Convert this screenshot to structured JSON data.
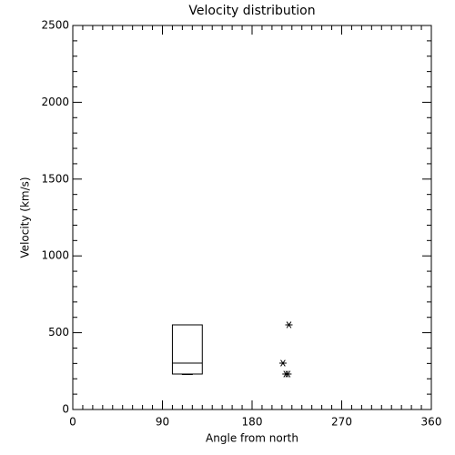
{
  "chart_data": {
    "type": "box-scatter",
    "title": "Velocity distribution",
    "x_label": "Angle from north",
    "y_label": "Velocity (km/s)",
    "xlim": [
      0,
      360
    ],
    "ylim": [
      0,
      2500
    ],
    "xticks": [
      0,
      90,
      180,
      270,
      360
    ],
    "yticks": [
      0,
      500,
      1000,
      1500,
      2000,
      2500
    ],
    "xminorticks": [
      10,
      20,
      30,
      40,
      50,
      60,
      70,
      80,
      100,
      110,
      120,
      130,
      140,
      150,
      160,
      170,
      190,
      200,
      210,
      220,
      230,
      240,
      250,
      260,
      280,
      290,
      300,
      310,
      320,
      330,
      340,
      350
    ],
    "yminorticks": [
      100,
      200,
      300,
      400,
      600,
      700,
      800,
      900,
      1100,
      1200,
      1300,
      1400,
      1600,
      1700,
      1800,
      1900,
      2100,
      2200,
      2300,
      2400
    ],
    "boxes": [
      {
        "x_left": 100,
        "x_right": 130,
        "whisker_low": 228,
        "q1": 231,
        "median": 302,
        "q3": 551
      }
    ],
    "points": {
      "x": [
        217,
        211,
        214,
        216
      ],
      "y": [
        551,
        302,
        231,
        231
      ]
    },
    "color": "#000000"
  }
}
